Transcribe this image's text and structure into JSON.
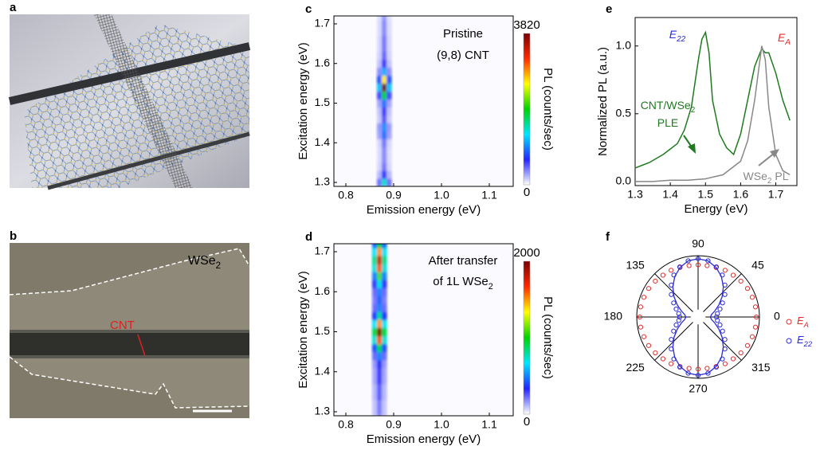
{
  "panel_labels": [
    "a",
    "b",
    "c",
    "d",
    "e",
    "f"
  ],
  "panel_b": {
    "flake": {
      "text": "WSe",
      "sub": "2"
    },
    "tube": {
      "text": "CNT"
    }
  },
  "chart_data": [
    {
      "type": "heatmap",
      "annotations": [
        {
          "text": "Pristine"
        },
        {
          "text": "(9,8) CNT"
        }
      ],
      "xlabel": "Emission energy (eV)",
      "ylabel": "Excitation energy (eV)",
      "xlim": [
        0.775,
        1.15
      ],
      "ylim": [
        1.29,
        1.72
      ],
      "xticks": [
        0.8,
        0.9,
        {
          "value": 1,
          "label": "1.0"
        },
        1.1
      ],
      "yticks": [
        1.3,
        1.4,
        1.5,
        1.6,
        1.7
      ],
      "x_edges": [
        0.865,
        0.875,
        0.885,
        0.895
      ],
      "y_edges": [
        1.29,
        1.31,
        1.33,
        1.35,
        1.37,
        1.39,
        1.41,
        1.43,
        1.45,
        1.47,
        1.49,
        1.51,
        1.53,
        1.55,
        1.57,
        1.59,
        1.61,
        1.63,
        1.65,
        1.67,
        1.69,
        1.71,
        1.73
      ],
      "z": [
        [
          420,
          1400,
          420
        ],
        [
          210,
          700,
          210
        ],
        [
          120,
          400,
          120
        ],
        [
          105,
          350,
          105
        ],
        [
          105,
          350,
          105
        ],
        [
          120,
          400,
          120
        ],
        [
          270,
          900,
          270
        ],
        [
          300,
          1000,
          300
        ],
        [
          150,
          500,
          150
        ],
        [
          180,
          600,
          180
        ],
        [
          270,
          900,
          270
        ],
        [
          540,
          1800,
          540
        ],
        [
          1150,
          3820,
          1150
        ],
        [
          780,
          2600,
          780
        ],
        [
          330,
          1100,
          330
        ],
        [
          180,
          600,
          180
        ],
        [
          135,
          450,
          135
        ],
        [
          120,
          400,
          120
        ],
        [
          120,
          400,
          120
        ],
        [
          105,
          350,
          105
        ],
        [
          105,
          350,
          105
        ],
        [
          90,
          300,
          90
        ]
      ],
      "colorbar": {
        "label": "PL (counts/sec)",
        "zlim": [
          0,
          3820
        ],
        "ticks": [
          0,
          3820
        ]
      },
      "colormap": [
        "#ffffff",
        "#2424ff",
        "#00e5ff",
        "#00d200",
        "#ffff00",
        "#ff2a00",
        "#7a0000"
      ]
    },
    {
      "type": "heatmap",
      "annotations": [
        {
          "text": "After transfer"
        },
        {
          "text": "of 1L WSe",
          "sub": "2"
        }
      ],
      "xlabel": "Emission energy (eV)",
      "ylabel": "Excitation energy (eV)",
      "xlim": [
        0.775,
        1.15
      ],
      "ylim": [
        1.29,
        1.72
      ],
      "xticks": [
        0.8,
        0.9,
        {
          "value": 1,
          "label": "1.0"
        },
        1.1
      ],
      "yticks": [
        1.3,
        1.4,
        1.5,
        1.6,
        1.7
      ],
      "x_edges": [
        0.855,
        0.865,
        0.875,
        0.885
      ],
      "y_edges": [
        1.29,
        1.31,
        1.33,
        1.35,
        1.37,
        1.39,
        1.41,
        1.43,
        1.45,
        1.47,
        1.49,
        1.51,
        1.53,
        1.55,
        1.57,
        1.59,
        1.61,
        1.63,
        1.65,
        1.67,
        1.69,
        1.71,
        1.73
      ],
      "z": [
        [
          90,
          200,
          90
        ],
        [
          90,
          200,
          90
        ],
        [
          110,
          250,
          110
        ],
        [
          110,
          250,
          110
        ],
        [
          135,
          300,
          135
        ],
        [
          135,
          300,
          135
        ],
        [
          160,
          350,
          160
        ],
        [
          225,
          500,
          225
        ],
        [
          405,
          900,
          405
        ],
        [
          720,
          1600,
          720
        ],
        [
          900,
          2000,
          900
        ],
        [
          675,
          1500,
          675
        ],
        [
          360,
          800,
          360
        ],
        [
          225,
          500,
          225
        ],
        [
          200,
          450,
          200
        ],
        [
          225,
          500,
          225
        ],
        [
          315,
          700,
          315
        ],
        [
          495,
          1100,
          495
        ],
        [
          720,
          1600,
          720
        ],
        [
          810,
          1800,
          810
        ],
        [
          675,
          1500,
          675
        ],
        [
          450,
          1000,
          450
        ]
      ],
      "colorbar": {
        "label": "PL (counts/sec)",
        "zlim": [
          0,
          2000
        ],
        "ticks": [
          0,
          2000
        ]
      },
      "colormap": [
        "#ffffff",
        "#2424ff",
        "#00e5ff",
        "#00d200",
        "#ffff00",
        "#ff2a00",
        "#7a0000"
      ]
    },
    {
      "type": "line",
      "xlabel": "Energy (eV)",
      "ylabel": "Normalized PL (a.u.)",
      "xlim": [
        1.3,
        1.76
      ],
      "ylim": [
        -0.03,
        1.21
      ],
      "xticks": [
        1.3,
        1.4,
        1.5,
        1.6,
        1.7
      ],
      "yticks": [
        {
          "value": 0,
          "label": "0.0"
        },
        0.5,
        {
          "value": 1,
          "label": "1.0"
        }
      ],
      "annotations": [
        {
          "text": "E",
          "sub": "22"
        },
        {
          "text": "E",
          "sub": "A"
        },
        {
          "text": "CNT/WSe",
          "sub": "2"
        },
        {
          "text": "PLE"
        },
        {
          "text": "WSe",
          "sub": "2",
          "tail": " PL"
        }
      ],
      "series": [
        {
          "color": "#1f7a1f",
          "x": [
            1.3,
            1.32,
            1.34,
            1.36,
            1.38,
            1.4,
            1.42,
            1.44,
            1.46,
            1.48,
            1.49,
            1.5,
            1.51,
            1.52,
            1.54,
            1.56,
            1.58,
            1.6,
            1.62,
            1.64,
            1.66,
            1.67,
            1.68,
            1.7,
            1.72,
            1.74
          ],
          "values": [
            0.1,
            0.12,
            0.14,
            0.17,
            0.2,
            0.24,
            0.28,
            0.38,
            0.55,
            0.9,
            1.05,
            1.1,
            0.95,
            0.6,
            0.35,
            0.25,
            0.2,
            0.35,
            0.6,
            0.85,
            0.98,
            0.95,
            0.95,
            0.8,
            0.6,
            0.45
          ]
        },
        {
          "color": "#888888",
          "x": [
            1.3,
            1.35,
            1.4,
            1.45,
            1.5,
            1.55,
            1.6,
            1.62,
            1.64,
            1.66,
            1.67,
            1.68,
            1.7,
            1.72,
            1.74
          ],
          "values": [
            0,
            0,
            0.01,
            0.01,
            0.02,
            0.05,
            0.15,
            0.3,
            0.6,
            1,
            0.9,
            0.55,
            0.2,
            0.08,
            0.05
          ]
        }
      ]
    },
    {
      "type": "polar",
      "rlim": [
        0,
        1
      ],
      "theta_ticks": [
        0,
        45,
        90,
        135,
        180,
        225,
        270,
        315
      ],
      "theta": [
        0,
        10,
        20,
        30,
        40,
        50,
        60,
        70,
        80,
        90,
        100,
        110,
        120,
        130,
        140,
        150,
        160,
        170,
        180,
        190,
        200,
        210,
        220,
        230,
        240,
        250,
        260,
        270,
        280,
        290,
        300,
        310,
        320,
        330,
        340,
        350
      ],
      "series": [
        {
          "label": {
            "text": "E",
            "sub": "A"
          },
          "color": "#e03030",
          "values": [
            0.95,
            0.95,
            0.94,
            0.93,
            0.91,
            0.89,
            0.88,
            0.86,
            0.85,
            0.85,
            0.85,
            0.86,
            0.88,
            0.89,
            0.91,
            0.93,
            0.94,
            0.95,
            0.95,
            0.95,
            0.94,
            0.93,
            0.91,
            0.89,
            0.88,
            0.86,
            0.85,
            0.85,
            0.85,
            0.86,
            0.88,
            0.89,
            0.91,
            0.93,
            0.94,
            0.95
          ]
        },
        {
          "label": {
            "text": "E",
            "sub": "22"
          },
          "color": "#2a2ad6",
          "values": [
            0.3,
            0.32,
            0.38,
            0.46,
            0.57,
            0.68,
            0.79,
            0.87,
            0.93,
            0.95,
            0.93,
            0.87,
            0.79,
            0.68,
            0.57,
            0.46,
            0.38,
            0.32,
            0.3,
            0.32,
            0.38,
            0.46,
            0.57,
            0.68,
            0.79,
            0.87,
            0.93,
            0.95,
            0.93,
            0.87,
            0.79,
            0.68,
            0.57,
            0.46,
            0.38,
            0.32
          ],
          "fit": [
            0.2,
            0.22,
            0.29,
            0.39,
            0.51,
            0.64,
            0.76,
            0.86,
            0.93,
            0.95,
            0.93,
            0.86,
            0.76,
            0.64,
            0.51,
            0.39,
            0.29,
            0.22,
            0.2,
            0.22,
            0.29,
            0.39,
            0.51,
            0.64,
            0.76,
            0.86,
            0.93,
            0.95,
            0.93,
            0.86,
            0.76,
            0.64,
            0.51,
            0.39,
            0.29,
            0.22
          ]
        }
      ]
    }
  ]
}
